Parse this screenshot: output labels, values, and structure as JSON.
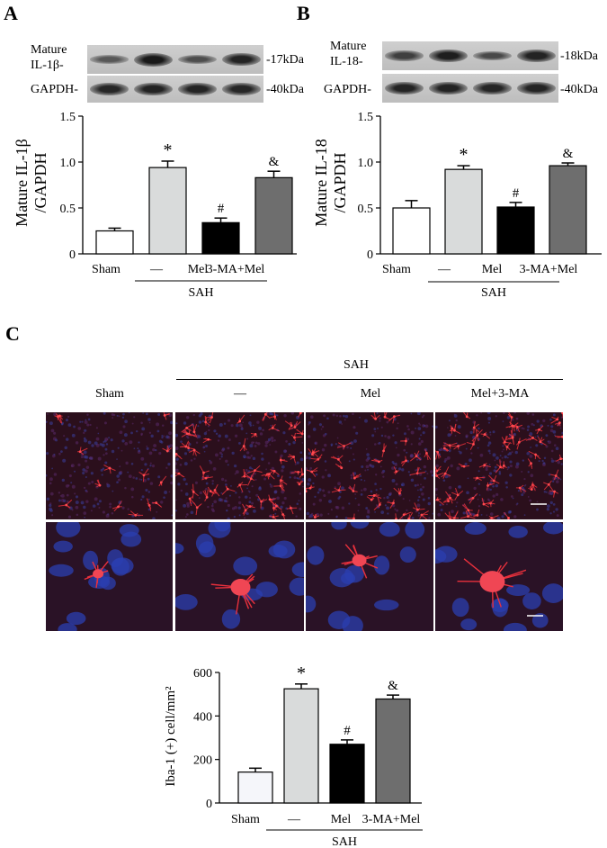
{
  "panelA": {
    "letter": "A",
    "blot": {
      "row1_label": "Mature\nIL-1β-",
      "row1_kda": "-17kDa",
      "row2_label": "GAPDH-",
      "row2_kda": "-40kDa",
      "row1_intensity": [
        0.35,
        1.0,
        0.45,
        0.9
      ],
      "row2_intensity": [
        0.85,
        0.9,
        0.88,
        0.86
      ]
    }
  },
  "panelB": {
    "letter": "B",
    "blot": {
      "row1_label": "Mature\nIL-18-",
      "row1_kda": "-18kDa",
      "row2_label": "GAPDH-",
      "row2_kda": "-40kDa",
      "row1_intensity": [
        0.6,
        0.95,
        0.5,
        0.9
      ],
      "row2_intensity": [
        0.88,
        0.9,
        0.86,
        0.88
      ]
    }
  },
  "panelC": {
    "letter": "C",
    "sah_label": "SAH",
    "columns": [
      "Sham",
      "—",
      "Mel",
      "Mel+3-MA"
    ]
  },
  "chart_data": [
    {
      "type": "bar",
      "ylabel": "Mature IL-1β /GAPDH",
      "ylim": [
        0,
        1.5
      ],
      "yticks": [
        "0",
        "0.5",
        "1.0",
        "1.5"
      ],
      "categories": [
        "Sham",
        "—",
        "Mel",
        "3-MA+Mel"
      ],
      "values": [
        0.25,
        0.94,
        0.34,
        0.83
      ],
      "errors": [
        0.03,
        0.07,
        0.05,
        0.07
      ],
      "markers": [
        "",
        "*",
        "#",
        "&"
      ],
      "colors": [
        "#ffffff",
        "#d9dbdb",
        "#000000",
        "#6e6e6e"
      ],
      "group_label": "SAH"
    },
    {
      "type": "bar",
      "ylabel": "Mature IL-18 /GAPDH",
      "ylim": [
        0,
        1.5
      ],
      "yticks": [
        "0",
        "0.5",
        "1.0",
        "1.5"
      ],
      "categories": [
        "Sham",
        "—",
        "Mel",
        "3-MA+Mel"
      ],
      "values": [
        0.5,
        0.92,
        0.51,
        0.96
      ],
      "errors": [
        0.08,
        0.04,
        0.05,
        0.03
      ],
      "markers": [
        "",
        "*",
        "#",
        "&"
      ],
      "colors": [
        "#ffffff",
        "#d9dbdb",
        "#000000",
        "#6e6e6e"
      ],
      "group_label": "SAH"
    },
    {
      "type": "bar",
      "ylabel": "Iba-1 (+) cell/mm²",
      "ylim": [
        0,
        600
      ],
      "yticks": [
        "0",
        "200",
        "400",
        "600"
      ],
      "categories": [
        "Sham",
        "—",
        "Mel",
        "3-MA+Mel"
      ],
      "values": [
        142,
        525,
        270,
        478
      ],
      "errors": [
        18,
        22,
        20,
        18
      ],
      "markers": [
        "",
        "*",
        "#",
        "&"
      ],
      "colors": [
        "#f5f6fa",
        "#d9dbdb",
        "#000000",
        "#6e6e6e"
      ],
      "group_label": "SAH"
    }
  ]
}
